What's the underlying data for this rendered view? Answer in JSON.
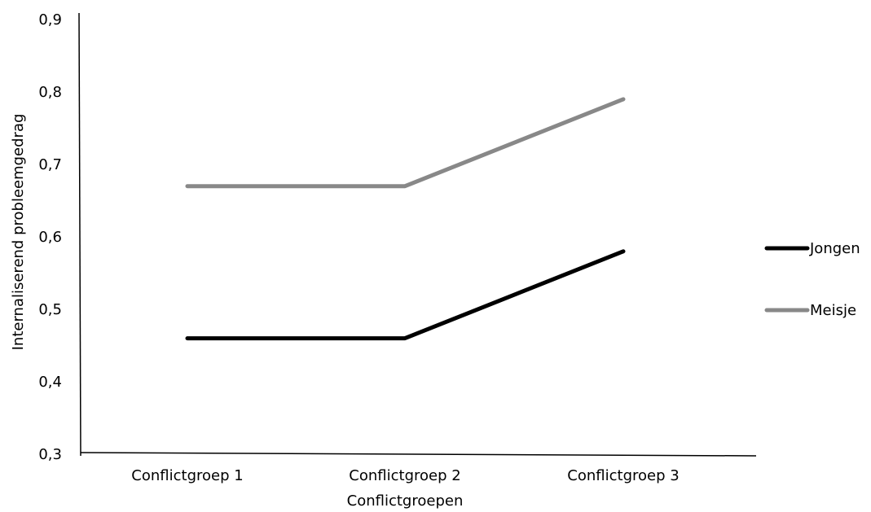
{
  "chart_data": {
    "type": "line",
    "categories": [
      "Conflictgroep 1",
      "Conflictgroep 2",
      "Conflictgroep 3"
    ],
    "series": [
      {
        "name": "Jongen",
        "values": [
          0.46,
          0.46,
          0.58
        ],
        "color": "#000000"
      },
      {
        "name": "Meisje",
        "values": [
          0.67,
          0.67,
          0.79
        ],
        "color": "#888888"
      }
    ],
    "xlabel": "Conflictgroepen",
    "ylabel": "Internaliserend probleemgedrag",
    "ylim": [
      0.3,
      0.9
    ],
    "yticks": [
      0.3,
      0.4,
      0.5,
      0.6,
      0.7,
      0.8,
      0.9
    ],
    "ytick_labels": [
      "0,3",
      "0,4",
      "0,5",
      "0,6",
      "0,7",
      "0,8",
      "0,9"
    ],
    "grid": false,
    "legend_position": "right"
  }
}
